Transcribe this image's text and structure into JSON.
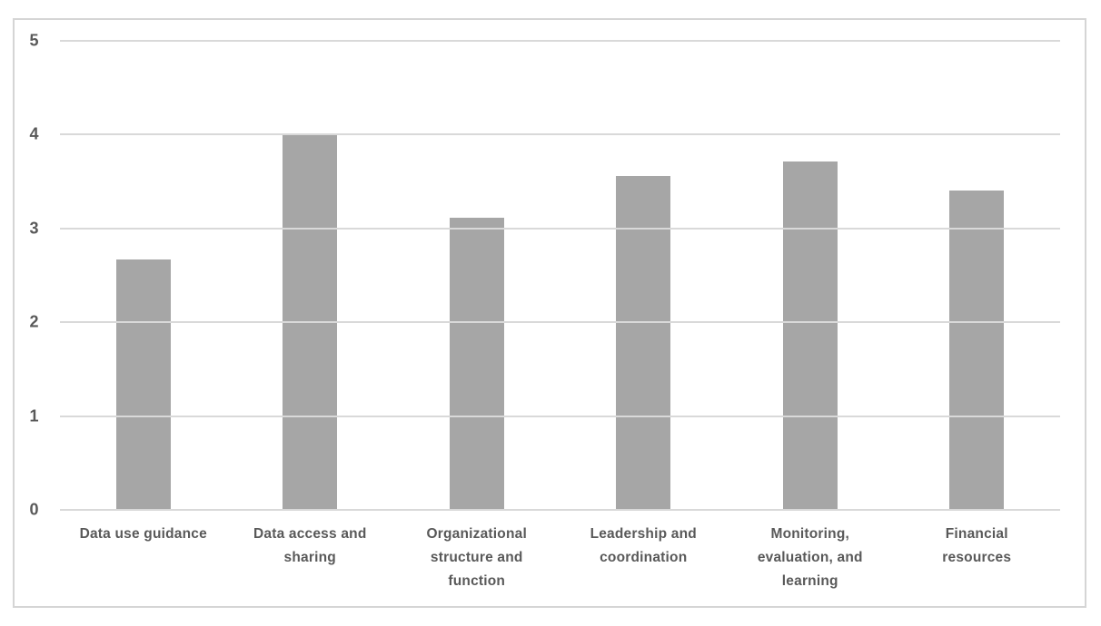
{
  "chart_data": {
    "type": "bar",
    "title": "",
    "xlabel": "",
    "ylabel": "",
    "categories": [
      "Data use guidance",
      "Data access and sharing",
      "Organizational structure and function",
      "Leadership and coordination",
      "Monitoring, evaluation, and learning",
      "Financial resources"
    ],
    "category_display_lines": [
      [
        "Data use guidance"
      ],
      [
        "Data access and",
        "sharing"
      ],
      [
        "Organizational",
        "structure and",
        "function"
      ],
      [
        "Leadership and",
        "coordination"
      ],
      [
        "Monitoring,",
        "evaluation, and",
        "learning"
      ],
      [
        "Financial",
        "resources"
      ]
    ],
    "values": [
      2.67,
      4.0,
      3.11,
      3.56,
      3.71,
      3.4
    ],
    "ylim": [
      0,
      5
    ],
    "yticks": [
      0,
      1,
      2,
      3,
      4,
      5
    ],
    "grid": true,
    "legend": false,
    "colors": {
      "bar": "#a6a6a6",
      "gridline": "#d9d9d9",
      "tick_text": "#595959",
      "frame_border": "#d5d5d5",
      "background": "#ffffff"
    }
  }
}
